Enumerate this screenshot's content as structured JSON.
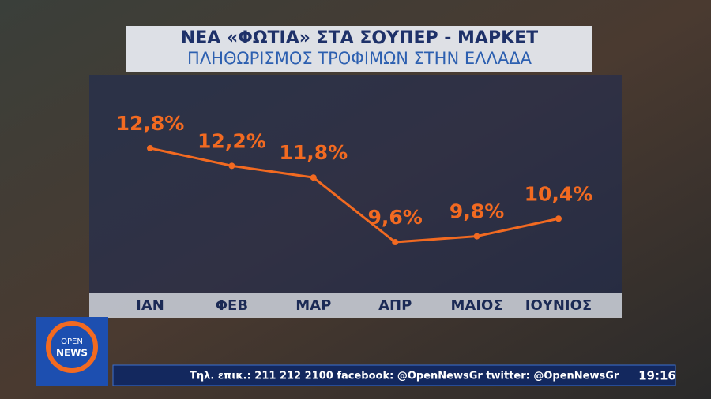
{
  "chart_data": {
    "type": "line",
    "title": "ΝΕΑ «ΦΩΤΙΑ» ΣΤΑ ΣΟΥΠΕΡ - ΜΑΡΚΕΤ",
    "subtitle": "ΠΛΗΘΩΡΙΣΜΟΣ ΤΡΟΦΙΜΩΝ ΣΤΗΝ ΕΛΛΑΔΑ",
    "categories": [
      "ΙΑΝ",
      "ΦΕΒ",
      "ΜΑΡ",
      "ΑΠΡ",
      "ΜΑΙΟΣ",
      "ΙΟΥΝΙΟΣ"
    ],
    "values": [
      12.8,
      12.2,
      11.8,
      9.6,
      9.8,
      10.4
    ],
    "value_labels": [
      "12,8%",
      "12,2%",
      "11,8%",
      "9,6%",
      "9,8%",
      "10,4%"
    ],
    "color": "#f26a21"
  },
  "logo": {
    "line1": "OPEN",
    "line2": "NEWS"
  },
  "ticker": "Τηλ. επικ.: 211 212 2100 facebook: @OpenNewsGr twitter: @OpenNewsGr",
  "clock": "19:16"
}
